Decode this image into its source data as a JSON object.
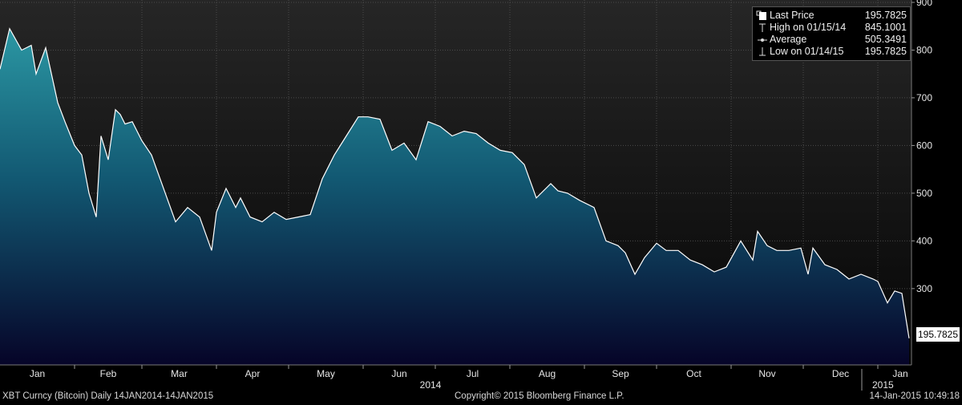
{
  "chart_data": {
    "type": "area",
    "security": "XBT Curncy (Bitcoin)",
    "period": "Daily 14JAN2014-14JAN2015",
    "y_ticks": [
      300,
      400,
      500,
      600,
      700,
      800,
      900
    ],
    "ylim": [
      140,
      905
    ],
    "xlim": [
      "2014-01-01",
      "2015-01-15"
    ],
    "x_tick_labels": [
      "Jan",
      "Feb",
      "Mar",
      "Apr",
      "May",
      "Jun",
      "Jul",
      "Aug",
      "Sep",
      "Oct",
      "Nov",
      "Dec",
      "Jan"
    ],
    "year_labels": [
      "2014",
      "2015"
    ],
    "legend_placement": "top-right",
    "grid": true,
    "x": [
      "2014-01-01",
      "2014-01-05",
      "2014-01-10",
      "2014-01-14",
      "2014-01-16",
      "2014-01-20",
      "2014-01-25",
      "2014-01-28",
      "2014-02-01",
      "2014-02-04",
      "2014-02-07",
      "2014-02-10",
      "2014-02-12",
      "2014-02-15",
      "2014-02-18",
      "2014-02-20",
      "2014-02-22",
      "2014-02-25",
      "2014-02-27",
      "2014-03-01",
      "2014-03-05",
      "2014-03-10",
      "2014-03-15",
      "2014-03-20",
      "2014-03-25",
      "2014-03-30",
      "2014-04-01",
      "2014-04-05",
      "2014-04-09",
      "2014-04-11",
      "2014-04-15",
      "2014-04-20",
      "2014-04-25",
      "2014-04-30",
      "2014-05-05",
      "2014-05-10",
      "2014-05-15",
      "2014-05-20",
      "2014-05-25",
      "2014-05-30",
      "2014-06-03",
      "2014-06-08",
      "2014-06-13",
      "2014-06-18",
      "2014-06-23",
      "2014-06-28",
      "2014-07-03",
      "2014-07-08",
      "2014-07-13",
      "2014-07-18",
      "2014-07-23",
      "2014-07-28",
      "2014-08-02",
      "2014-08-07",
      "2014-08-12",
      "2014-08-18",
      "2014-08-21",
      "2014-08-25",
      "2014-08-30",
      "2014-09-05",
      "2014-09-10",
      "2014-09-15",
      "2014-09-18",
      "2014-09-22",
      "2014-09-26",
      "2014-10-01",
      "2014-10-05",
      "2014-10-10",
      "2014-10-15",
      "2014-10-20",
      "2014-10-25",
      "2014-10-30",
      "2014-11-05",
      "2014-11-10",
      "2014-11-12",
      "2014-11-16",
      "2014-11-20",
      "2014-11-25",
      "2014-11-30",
      "2014-12-03",
      "2014-12-05",
      "2014-12-10",
      "2014-12-15",
      "2014-12-20",
      "2014-12-25",
      "2014-12-30",
      "2015-01-01",
      "2015-01-05",
      "2015-01-08",
      "2015-01-11",
      "2015-01-14"
    ],
    "series": [
      {
        "values": [
          760,
          845,
          800,
          810,
          750,
          805,
          690,
          650,
          600,
          580,
          500,
          450,
          620,
          570,
          675,
          665,
          645,
          650,
          630,
          610,
          580,
          510,
          440,
          470,
          450,
          380,
          460,
          510,
          470,
          490,
          450,
          440,
          460,
          445,
          450,
          455,
          530,
          580,
          620,
          660,
          660,
          655,
          590,
          605,
          570,
          650,
          640,
          620,
          630,
          625,
          605,
          590,
          585,
          560,
          490,
          520,
          505,
          500,
          485,
          470,
          400,
          390,
          375,
          330,
          365,
          395,
          380,
          380,
          360,
          350,
          335,
          345,
          400,
          360,
          420,
          390,
          380,
          380,
          385,
          330,
          385,
          350,
          340,
          320,
          330,
          320,
          315,
          270,
          295,
          290,
          195.7825
        ]
      }
    ],
    "legend": {
      "last_price": {
        "label": "Last Price",
        "value": "195.7825"
      },
      "high": {
        "label": "High on 01/15/14",
        "value": "845.1001"
      },
      "average": {
        "label": "Average",
        "value": "505.3491"
      },
      "low": {
        "label": "Low on 01/14/15",
        "value": "195.7825"
      }
    },
    "last_price_tag": "195.7825"
  },
  "footer": {
    "left": "XBT Curncy (Bitcoin)  Daily 14JAN2014-14JAN2015",
    "center": "Copyright© 2015 Bloomberg Finance L.P.",
    "right": "14-Jan-2015 10:49:18"
  },
  "colors": {
    "background": "#000000",
    "plot_top": "#222222",
    "plot_bottom": "#000000",
    "area_top": "#2a93a0",
    "area_bottom": "#06052a",
    "line": "#ffffff",
    "grid": "#5a5a5a"
  }
}
